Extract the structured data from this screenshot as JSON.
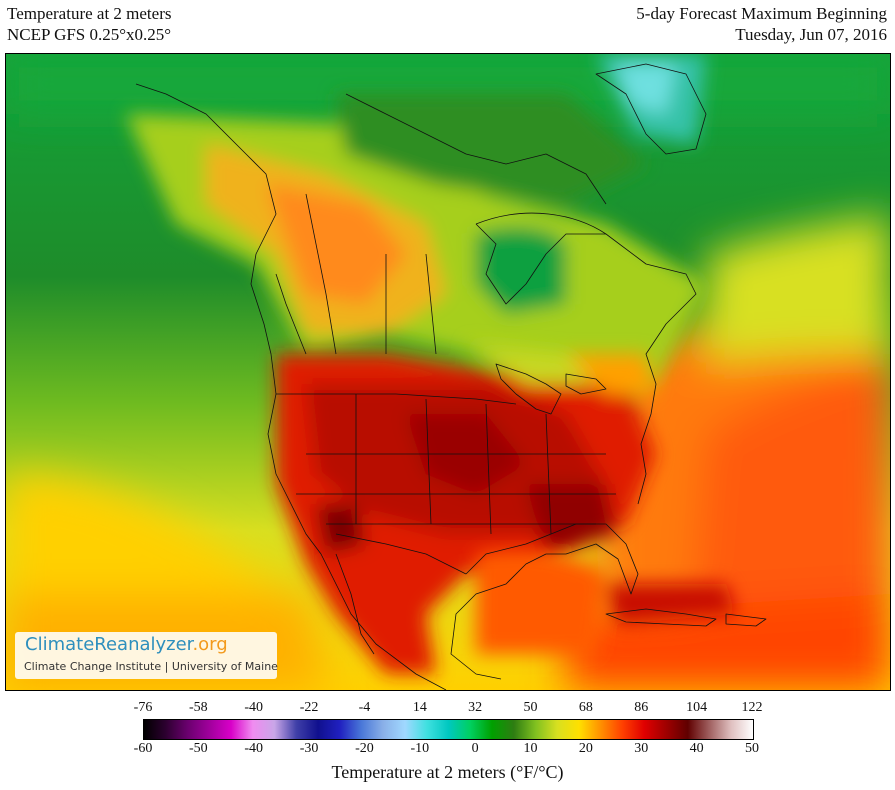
{
  "header": {
    "title_left_line1": "Temperature at 2 meters",
    "title_left_line2": "NCEP GFS 0.25°x0.25°",
    "title_right_line1": "5-day Forecast Maximum Beginning",
    "title_right_line2": "Tuesday, Jun 07, 2016"
  },
  "logo": {
    "name_main": "ClimateReanalyzer",
    "name_suffix": ".org",
    "subtitle": "Climate Change Institute | University of Maine"
  },
  "colorbar": {
    "fahrenheit_ticks": [
      "-76",
      "-58",
      "-40",
      "-22",
      "-4",
      "14",
      "32",
      "50",
      "68",
      "86",
      "104",
      "122"
    ],
    "celsius_ticks": [
      "-60",
      "-50",
      "-40",
      "-30",
      "-20",
      "-10",
      "0",
      "10",
      "20",
      "30",
      "40",
      "50"
    ],
    "title": "Temperature at 2 meters (°F/°C)",
    "colors": [
      "#000000",
      "#2d0030",
      "#6a006e",
      "#a0009c",
      "#d800c8",
      "#f08cf0",
      "#c9a6e8",
      "#4040a8",
      "#10108e",
      "#2020c0",
      "#4a78d8",
      "#8ab0e8",
      "#a0d8ff",
      "#40e0e0",
      "#00c8c0",
      "#00d060",
      "#00a000",
      "#2e7d12",
      "#80c020",
      "#d8e020",
      "#ffe000",
      "#ff9000",
      "#ff4000",
      "#e00000",
      "#a00000",
      "#600000",
      "#a06060",
      "#e0c0c0",
      "#ffffff"
    ]
  }
}
